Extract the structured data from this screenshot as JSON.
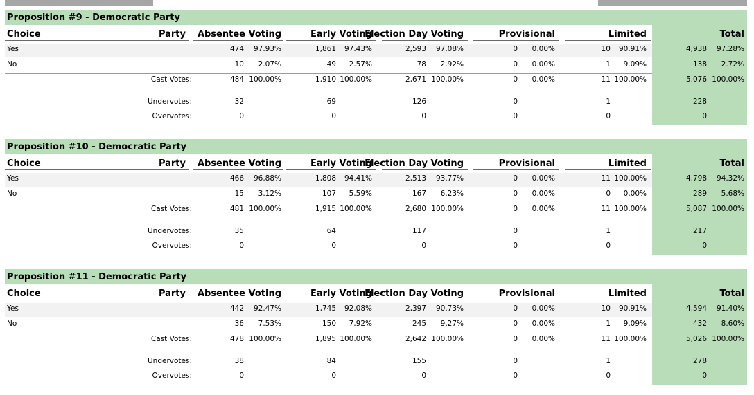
{
  "columns": {
    "choice": "Choice",
    "party": "Party",
    "absentee": "Absentee Voting",
    "early": "Early Voting",
    "election_day": "Election Day Voting",
    "provisional": "Provisional",
    "limited": "Limited",
    "total": "Total"
  },
  "labels": {
    "cast": "Cast Votes:",
    "under": "Undervotes:",
    "over": "Overvotes:"
  },
  "propositions": [
    {
      "title": "Proposition #9 - Democratic Party",
      "rows": [
        {
          "choice": "Yes",
          "absentee": [
            "474",
            "97.93%"
          ],
          "early": [
            "1,861",
            "97.43%"
          ],
          "election_day": [
            "2,593",
            "97.08%"
          ],
          "provisional": [
            "0",
            "0.00%"
          ],
          "limited": [
            "10",
            "90.91%"
          ],
          "total": [
            "4,938",
            "97.28%"
          ]
        },
        {
          "choice": "No",
          "absentee": [
            "10",
            "2.07%"
          ],
          "early": [
            "49",
            "2.57%"
          ],
          "election_day": [
            "78",
            "2.92%"
          ],
          "provisional": [
            "0",
            "0.00%"
          ],
          "limited": [
            "1",
            "9.09%"
          ],
          "total": [
            "138",
            "2.72%"
          ]
        }
      ],
      "cast": {
        "absentee": [
          "484",
          "100.00%"
        ],
        "early": [
          "1,910",
          "100.00%"
        ],
        "election_day": [
          "2,671",
          "100.00%"
        ],
        "provisional": [
          "0",
          "0.00%"
        ],
        "limited": [
          "11",
          "100.00%"
        ],
        "total": [
          "5,076",
          "100.00%"
        ]
      },
      "under": {
        "absentee": "32",
        "early": "69",
        "election_day": "126",
        "provisional": "0",
        "limited": "1",
        "total": "228"
      },
      "over": {
        "absentee": "0",
        "early": "0",
        "election_day": "0",
        "provisional": "0",
        "limited": "0",
        "total": "0"
      }
    },
    {
      "title": "Proposition #10 - Democratic Party",
      "rows": [
        {
          "choice": "Yes",
          "absentee": [
            "466",
            "96.88%"
          ],
          "early": [
            "1,808",
            "94.41%"
          ],
          "election_day": [
            "2,513",
            "93.77%"
          ],
          "provisional": [
            "0",
            "0.00%"
          ],
          "limited": [
            "11",
            "100.00%"
          ],
          "total": [
            "4,798",
            "94.32%"
          ]
        },
        {
          "choice": "No",
          "absentee": [
            "15",
            "3.12%"
          ],
          "early": [
            "107",
            "5.59%"
          ],
          "election_day": [
            "167",
            "6.23%"
          ],
          "provisional": [
            "0",
            "0.00%"
          ],
          "limited": [
            "0",
            "0.00%"
          ],
          "total": [
            "289",
            "5.68%"
          ]
        }
      ],
      "cast": {
        "absentee": [
          "481",
          "100.00%"
        ],
        "early": [
          "1,915",
          "100.00%"
        ],
        "election_day": [
          "2,680",
          "100.00%"
        ],
        "provisional": [
          "0",
          "0.00%"
        ],
        "limited": [
          "11",
          "100.00%"
        ],
        "total": [
          "5,087",
          "100.00%"
        ]
      },
      "under": {
        "absentee": "35",
        "early": "64",
        "election_day": "117",
        "provisional": "0",
        "limited": "1",
        "total": "217"
      },
      "over": {
        "absentee": "0",
        "early": "0",
        "election_day": "0",
        "provisional": "0",
        "limited": "0",
        "total": "0"
      }
    },
    {
      "title": "Proposition #11 - Democratic Party",
      "rows": [
        {
          "choice": "Yes",
          "absentee": [
            "442",
            "92.47%"
          ],
          "early": [
            "1,745",
            "92.08%"
          ],
          "election_day": [
            "2,397",
            "90.73%"
          ],
          "provisional": [
            "0",
            "0.00%"
          ],
          "limited": [
            "10",
            "90.91%"
          ],
          "total": [
            "4,594",
            "91.40%"
          ]
        },
        {
          "choice": "No",
          "absentee": [
            "36",
            "7.53%"
          ],
          "early": [
            "150",
            "7.92%"
          ],
          "election_day": [
            "245",
            "9.27%"
          ],
          "provisional": [
            "0",
            "0.00%"
          ],
          "limited": [
            "1",
            "9.09%"
          ],
          "total": [
            "432",
            "8.60%"
          ]
        }
      ],
      "cast": {
        "absentee": [
          "478",
          "100.00%"
        ],
        "early": [
          "1,895",
          "100.00%"
        ],
        "election_day": [
          "2,642",
          "100.00%"
        ],
        "provisional": [
          "0",
          "0.00%"
        ],
        "limited": [
          "11",
          "100.00%"
        ],
        "total": [
          "5,026",
          "100.00%"
        ]
      },
      "under": {
        "absentee": "38",
        "early": "84",
        "election_day": "155",
        "provisional": "0",
        "limited": "1",
        "total": "278"
      },
      "over": {
        "absentee": "0",
        "early": "0",
        "election_day": "0",
        "provisional": "0",
        "limited": "0",
        "total": "0"
      }
    }
  ]
}
